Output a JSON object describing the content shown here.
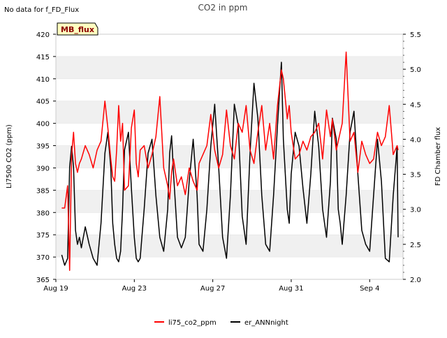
{
  "header": {
    "no_data_note": "No data for f_FD_Flux",
    "badge_label": "MB_flux"
  },
  "colors": {
    "series_co2": "#ff0000",
    "series_ann": "#000000",
    "band": "#f0f0f0",
    "badge_fill": "#ffffc0",
    "badge_text": "#8b0000"
  },
  "chart_data": {
    "type": "line",
    "title": "CO2 in ppm",
    "ylabel": "LI7500 CO2 (ppm)",
    "y2label": "FD Chamber flux",
    "x_ticks": [
      "Aug 19",
      "Aug 23",
      "Aug 27",
      "Aug 31",
      "Sep 4"
    ],
    "x_tick_day_offsets": [
      0,
      4,
      8,
      12,
      16
    ],
    "xlim_days": [
      0,
      17.7
    ],
    "ylim": [
      365,
      420
    ],
    "y_ticks": [
      365,
      370,
      375,
      380,
      385,
      390,
      395,
      400,
      405,
      410,
      415,
      420
    ],
    "y2lim": [
      2.0,
      5.5
    ],
    "y2_ticks": [
      "2.0",
      "2.5",
      "3.0",
      "3.5",
      "4.0",
      "4.5",
      "5.0",
      "5.5"
    ],
    "grid": "alternating horizontal bands",
    "legend_placement": "bottom-center",
    "series": [
      {
        "name": "li75_co2_ppm",
        "axis": "left",
        "x_days": [
          0.3,
          0.45,
          0.6,
          0.7,
          0.8,
          0.9,
          1.0,
          1.1,
          1.2,
          1.3,
          1.5,
          1.7,
          1.9,
          2.1,
          2.3,
          2.5,
          2.65,
          2.8,
          2.9,
          3.0,
          3.1,
          3.2,
          3.3,
          3.4,
          3.5,
          3.7,
          3.85,
          4.0,
          4.1,
          4.2,
          4.3,
          4.5,
          4.7,
          4.9,
          5.1,
          5.3,
          5.5,
          5.7,
          5.8,
          5.9,
          6.0,
          6.2,
          6.4,
          6.6,
          6.8,
          7.0,
          7.2,
          7.3,
          7.5,
          7.7,
          7.9,
          8.1,
          8.3,
          8.5,
          8.7,
          8.9,
          9.1,
          9.3,
          9.5,
          9.7,
          9.9,
          10.1,
          10.3,
          10.5,
          10.7,
          10.9,
          11.1,
          11.3,
          11.5,
          11.6,
          11.8,
          11.9,
          12.0,
          12.2,
          12.4,
          12.6,
          12.8,
          13.0,
          13.2,
          13.4,
          13.6,
          13.8,
          14.0,
          14.1,
          14.3,
          14.4,
          14.5,
          14.6,
          14.8,
          15.0,
          15.2,
          15.4,
          15.6,
          15.8,
          16.0,
          16.2,
          16.4,
          16.6,
          16.8,
          17.0,
          17.2,
          17.4,
          17.45
        ],
        "values": [
          381,
          381,
          386,
          367,
          393,
          398,
          391,
          389,
          391,
          392,
          395,
          393,
          390,
          394,
          396,
          405,
          399,
          392,
          388,
          387,
          394,
          404,
          396,
          400,
          385,
          386,
          399,
          403,
          391,
          388,
          394,
          395,
          390,
          393,
          397,
          406,
          390,
          386,
          383,
          389,
          392,
          386,
          388,
          384,
          390,
          387,
          385,
          391,
          393,
          395,
          402,
          394,
          390,
          393,
          403,
          395,
          392,
          400,
          398,
          404,
          394,
          391,
          398,
          404,
          394,
          400,
          392,
          404,
          412,
          410,
          401,
          404,
          398,
          392,
          393,
          396,
          394,
          397,
          398,
          400,
          392,
          403,
          397,
          401,
          394,
          396,
          398,
          400,
          416,
          396,
          398,
          389,
          396,
          393,
          391,
          392,
          398,
          395,
          397,
          404,
          393,
          395,
          394
        ]
      },
      {
        "name": "er_ANNnight",
        "axis": "right",
        "x_days": [
          0.3,
          0.45,
          0.6,
          0.7,
          0.8,
          0.9,
          1.0,
          1.1,
          1.2,
          1.3,
          1.5,
          1.7,
          1.9,
          2.1,
          2.3,
          2.5,
          2.65,
          2.8,
          2.9,
          3.0,
          3.1,
          3.2,
          3.3,
          3.4,
          3.5,
          3.7,
          3.85,
          4.0,
          4.1,
          4.2,
          4.3,
          4.5,
          4.7,
          4.9,
          5.1,
          5.3,
          5.5,
          5.7,
          5.8,
          5.9,
          6.0,
          6.2,
          6.4,
          6.6,
          6.8,
          7.0,
          7.2,
          7.3,
          7.5,
          7.7,
          7.9,
          8.1,
          8.3,
          8.5,
          8.7,
          8.9,
          9.1,
          9.3,
          9.5,
          9.7,
          9.9,
          10.1,
          10.3,
          10.5,
          10.7,
          10.9,
          11.1,
          11.3,
          11.5,
          11.6,
          11.8,
          11.9,
          12.0,
          12.2,
          12.4,
          12.6,
          12.8,
          13.0,
          13.2,
          13.4,
          13.6,
          13.8,
          14.0,
          14.1,
          14.3,
          14.4,
          14.5,
          14.6,
          14.8,
          15.0,
          15.2,
          15.4,
          15.6,
          15.8,
          16.0,
          16.2,
          16.4,
          16.6,
          16.8,
          17.0,
          17.2,
          17.4,
          17.45
        ],
        "values": [
          2.35,
          2.2,
          2.3,
          3.6,
          3.9,
          3.6,
          2.7,
          2.5,
          2.6,
          2.45,
          2.75,
          2.5,
          2.3,
          2.2,
          2.8,
          3.8,
          4.1,
          3.6,
          2.8,
          2.5,
          2.3,
          2.25,
          2.4,
          3.0,
          3.85,
          4.1,
          3.3,
          2.6,
          2.3,
          2.25,
          2.3,
          3.0,
          3.8,
          4.0,
          3.2,
          2.6,
          2.4,
          3.0,
          3.8,
          4.05,
          3.5,
          2.6,
          2.45,
          2.6,
          3.4,
          4.0,
          3.2,
          2.5,
          2.4,
          3.0,
          3.9,
          4.5,
          3.6,
          2.6,
          2.3,
          3.2,
          4.5,
          4.2,
          2.9,
          2.5,
          3.8,
          4.8,
          4.3,
          3.2,
          2.5,
          2.4,
          3.2,
          4.2,
          5.1,
          4.0,
          3.0,
          2.8,
          3.5,
          4.1,
          3.9,
          3.3,
          2.8,
          3.5,
          4.4,
          3.9,
          3.0,
          2.6,
          3.4,
          4.3,
          4.0,
          3.0,
          2.8,
          2.5,
          3.2,
          4.1,
          4.4,
          3.5,
          2.7,
          2.5,
          2.4,
          3.2,
          4.0,
          3.4,
          2.3,
          2.25,
          3.2,
          3.9,
          2.6
        ]
      }
    ]
  }
}
